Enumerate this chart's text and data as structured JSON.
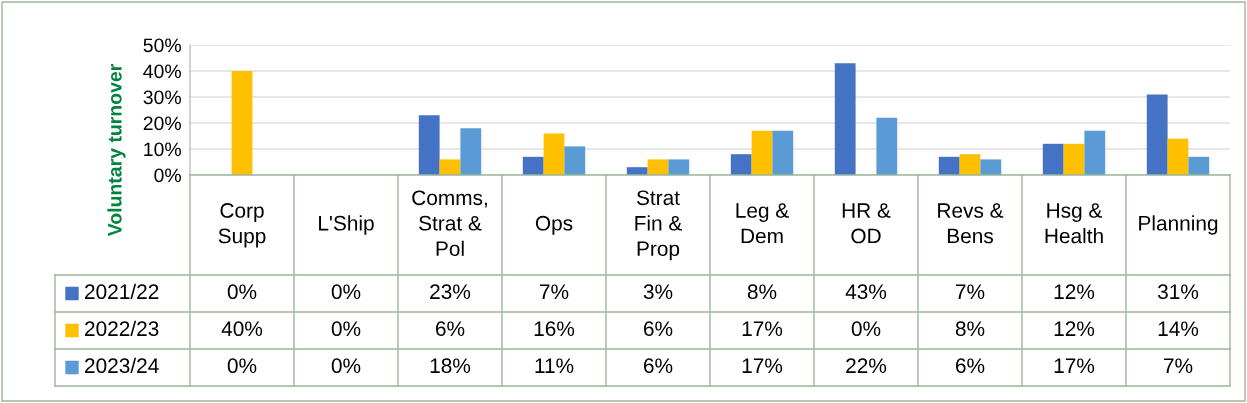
{
  "chart_data": {
    "type": "bar",
    "ylabel": "Voluntary turnover",
    "categories": [
      "Corp\nSupp",
      "L'Ship",
      "Comms,\nStrat &\nPol",
      "Ops",
      "Strat\nFin &\nProp",
      "Leg &\nDem",
      "HR &\nOD",
      "Revs &\nBens",
      "Hsg &\nHealth",
      "Planning"
    ],
    "series": [
      {
        "name": "2021/22",
        "color": "#4472c4",
        "values": [
          0,
          0,
          23,
          7,
          3,
          8,
          43,
          7,
          12,
          31
        ],
        "value_labels": [
          "0%",
          "0%",
          "23%",
          "7%",
          "3%",
          "8%",
          "43%",
          "7%",
          "12%",
          "31%"
        ]
      },
      {
        "name": "2022/23",
        "color": "#ffc000",
        "values": [
          40,
          0,
          6,
          16,
          6,
          17,
          0,
          8,
          12,
          14
        ],
        "value_labels": [
          "40%",
          "0%",
          "6%",
          "16%",
          "6%",
          "17%",
          "0%",
          "8%",
          "12%",
          "14%"
        ]
      },
      {
        "name": "2023/24",
        "color": "#5b9bd5",
        "values": [
          0,
          0,
          18,
          11,
          6,
          17,
          22,
          6,
          17,
          7
        ],
        "value_labels": [
          "0%",
          "0%",
          "18%",
          "11%",
          "6%",
          "17%",
          "22%",
          "6%",
          "17%",
          "7%"
        ]
      }
    ],
    "ylim": [
      0,
      50
    ],
    "yticks": [
      {
        "value": 0,
        "label": "0%"
      },
      {
        "value": 10,
        "label": "10%"
      },
      {
        "value": 20,
        "label": "20%"
      },
      {
        "value": 30,
        "label": "30%"
      },
      {
        "value": 40,
        "label": "40%"
      },
      {
        "value": 50,
        "label": "50%"
      }
    ],
    "grid": "y",
    "legend": "bottom left"
  }
}
